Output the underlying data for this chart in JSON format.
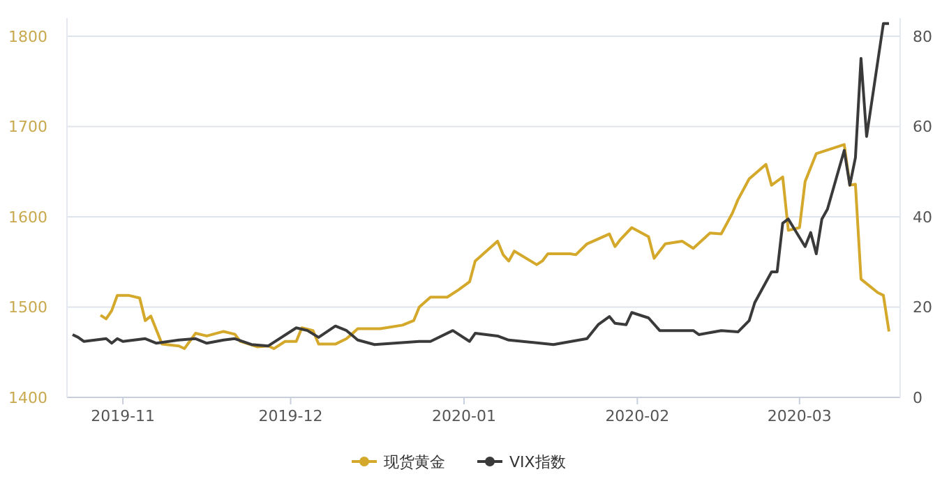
{
  "chart_data": {
    "type": "line",
    "xlim": [
      "2019-10-22",
      "2020-03-19"
    ],
    "xticks": [
      {
        "value": "2019-11-01",
        "label": "2019-11"
      },
      {
        "value": "2019-12-01",
        "label": "2019-12"
      },
      {
        "value": "2020-01-01",
        "label": "2020-01"
      },
      {
        "value": "2020-02-01",
        "label": "2020-02"
      },
      {
        "value": "2020-03-01",
        "label": "2020-03"
      }
    ],
    "ylim": [
      1400,
      1820
    ],
    "yticks": [
      1400,
      1500,
      1600,
      1700,
      1800
    ],
    "y2lim": [
      0,
      84
    ],
    "y2ticks": [
      0,
      20,
      40,
      60,
      80
    ],
    "grid": "y",
    "legend": "bottom",
    "series": [
      {
        "name": "现货黄金",
        "color": "#d4a82a",
        "x": [
          "2019-10-28",
          "2019-10-29",
          "2019-10-30",
          "2019-10-31",
          "2019-11-02",
          "2019-11-04",
          "2019-11-05",
          "2019-11-06",
          "2019-11-08",
          "2019-11-11",
          "2019-11-12",
          "2019-11-14",
          "2019-11-16",
          "2019-11-19",
          "2019-11-21",
          "2019-11-22",
          "2019-11-25",
          "2019-11-27",
          "2019-11-28",
          "2019-11-30",
          "2019-12-02",
          "2019-12-03",
          "2019-12-05",
          "2019-12-06",
          "2019-12-09",
          "2019-12-11",
          "2019-12-13",
          "2019-12-17",
          "2019-12-18",
          "2019-12-21",
          "2019-12-23",
          "2019-12-24",
          "2019-12-26",
          "2019-12-29",
          "2019-12-31",
          "2020-01-02",
          "2020-01-03",
          "2020-01-05",
          "2020-01-07",
          "2020-01-08",
          "2020-01-09",
          "2020-01-10",
          "2020-01-14",
          "2020-01-15",
          "2020-01-16",
          "2020-01-20",
          "2020-01-21",
          "2020-01-23",
          "2020-01-27",
          "2020-01-28",
          "2020-01-29",
          "2020-01-31",
          "2020-02-03",
          "2020-02-04",
          "2020-02-06",
          "2020-02-09",
          "2020-02-11",
          "2020-02-14",
          "2020-02-16",
          "2020-02-18",
          "2020-02-19",
          "2020-02-21",
          "2020-02-24",
          "2020-02-25",
          "2020-02-27",
          "2020-02-28",
          "2020-03-01",
          "2020-03-02",
          "2020-03-04",
          "2020-03-09",
          "2020-03-10",
          "2020-03-11",
          "2020-03-12",
          "2020-03-15",
          "2020-03-16",
          "2020-03-17"
        ],
        "values": [
          1491,
          1487,
          1496,
          1513,
          1513,
          1510,
          1485,
          1490,
          1459,
          1457,
          1454,
          1471,
          1468,
          1473,
          1470,
          1462,
          1456,
          1457,
          1454,
          1462,
          1462,
          1477,
          1474,
          1459,
          1459,
          1465,
          1476,
          1476,
          1477,
          1480,
          1485,
          1500,
          1511,
          1511,
          1519,
          1528,
          1551,
          1562,
          1573,
          1558,
          1551,
          1562,
          1547,
          1551,
          1559,
          1559,
          1558,
          1570,
          1581,
          1567,
          1575,
          1588,
          1578,
          1554,
          1570,
          1573,
          1565,
          1582,
          1581,
          1604,
          1619,
          1642,
          1658,
          1635,
          1644,
          1585,
          1588,
          1639,
          1670,
          1680,
          1635,
          1636,
          1531,
          1516,
          1513,
          1473
        ]
      },
      {
        "name": "VIX指数",
        "color": "#3a3a3a",
        "axis": "y2",
        "x": [
          "2019-10-23",
          "2019-10-24",
          "2019-10-25",
          "2019-10-29",
          "2019-10-30",
          "2019-10-31",
          "2019-11-01",
          "2019-11-05",
          "2019-11-07",
          "2019-11-11",
          "2019-11-14",
          "2019-11-16",
          "2019-11-19",
          "2019-11-21",
          "2019-11-24",
          "2019-11-27",
          "2019-12-02",
          "2019-12-04",
          "2019-12-06",
          "2019-12-09",
          "2019-12-11",
          "2019-12-13",
          "2019-12-16",
          "2019-12-24",
          "2019-12-26",
          "2019-12-30",
          "2020-01-02",
          "2020-01-03",
          "2020-01-07",
          "2020-01-09",
          "2020-01-17",
          "2020-01-23",
          "2020-01-25",
          "2020-01-27",
          "2020-01-28",
          "2020-01-30",
          "2020-01-31",
          "2020-02-03",
          "2020-02-05",
          "2020-02-11",
          "2020-02-12",
          "2020-02-16",
          "2020-02-19",
          "2020-02-21",
          "2020-02-22",
          "2020-02-25",
          "2020-02-26",
          "2020-02-27",
          "2020-02-28",
          "2020-03-02",
          "2020-03-03",
          "2020-03-04",
          "2020-03-05",
          "2020-03-06",
          "2020-03-09",
          "2020-03-10",
          "2020-03-11",
          "2020-03-12",
          "2020-03-13",
          "2020-03-16",
          "2020-03-17"
        ],
        "values": [
          13.9,
          13.3,
          12.4,
          13.0,
          12.0,
          13.0,
          12.4,
          13.0,
          12.0,
          12.7,
          13.0,
          12.0,
          12.7,
          13.0,
          11.7,
          11.4,
          15.4,
          14.8,
          13.3,
          15.8,
          14.8,
          12.7,
          11.7,
          12.4,
          12.4,
          14.8,
          12.4,
          14.2,
          13.6,
          12.7,
          11.7,
          13.0,
          16.1,
          17.9,
          16.4,
          16.1,
          18.8,
          17.6,
          14.8,
          14.8,
          13.9,
          14.8,
          14.5,
          17.0,
          21.0,
          27.8,
          27.8,
          38.6,
          39.5,
          33.4,
          36.5,
          31.8,
          39.5,
          41.7,
          54.7,
          47.0,
          53.1,
          75.1,
          57.8,
          82.8,
          82.8
        ]
      }
    ]
  }
}
